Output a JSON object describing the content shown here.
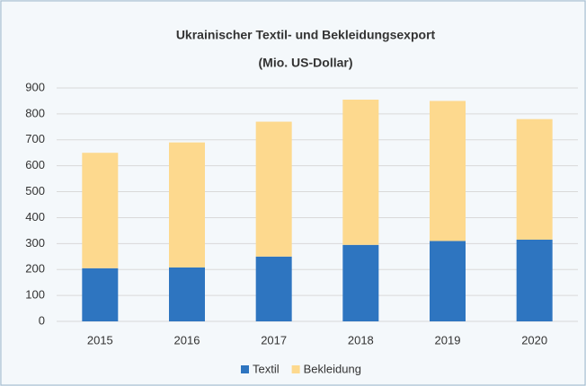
{
  "chart_data": {
    "type": "stacked_bar",
    "title": "Ukrainischer Textil- und Bekleidungsexport",
    "subtitle": "(Mio. US-Dollar)",
    "categories": [
      "2015",
      "2016",
      "2017",
      "2018",
      "2019",
      "2020"
    ],
    "series": [
      {
        "name": "Textil",
        "color": "#2e75c0",
        "values": [
          205,
          208,
          250,
          295,
          310,
          315
        ]
      },
      {
        "name": "Bekleidung",
        "color": "#fdd98e",
        "values": [
          445,
          482,
          520,
          560,
          540,
          465
        ]
      }
    ],
    "ylim": [
      0,
      900
    ],
    "yticks": [
      0,
      100,
      200,
      300,
      400,
      500,
      600,
      700,
      800,
      900
    ],
    "grid": true,
    "legend": "bottom"
  }
}
